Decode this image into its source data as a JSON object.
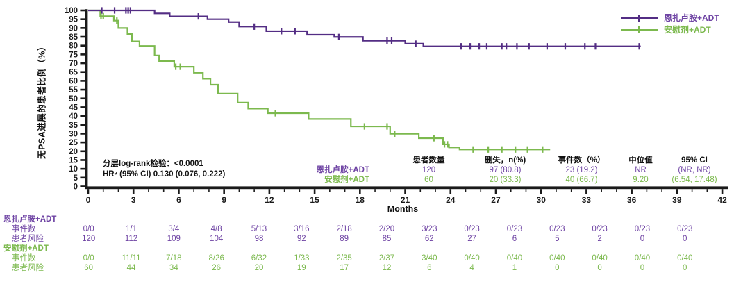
{
  "colors": {
    "axis": "#1a1a1a",
    "enza_line": "#532d84",
    "enza_text": "#6f44a4",
    "placebo_line": "#7cb94e",
    "placebo_text": "#7cb94e"
  },
  "legend": [
    {
      "label": "恩扎卢胺+ADT"
    },
    {
      "label": "安慰剂+ADT"
    }
  ],
  "stats": {
    "line1": "分层log-rank检验：<0.0001",
    "line2": "HRᵃ (95% CI) 0.130 (0.076, 0.222)"
  },
  "summary_table": {
    "row_labels": [
      "恩扎卢胺+ADT",
      "安慰剂+ADT"
    ],
    "headers": [
      "患者数量",
      "删失，n(%)",
      "事件数（%）",
      "中位值",
      "95% CI"
    ],
    "rows": [
      [
        "120",
        "97 (80.8)",
        "23 (19.2)",
        "NR",
        "(NR, NR)"
      ],
      [
        "60",
        "20 (33.3)",
        "40 (66.7)",
        "9.20",
        "(6.54, 17.48)"
      ]
    ]
  },
  "risk_table": {
    "groups": [
      {
        "name": "恩扎卢胺+ADT",
        "color_key": "enza_text",
        "rows": [
          {
            "label": "事件数",
            "values": [
              "0/0",
              "1/1",
              "3/4",
              "4/8",
              "5/13",
              "3/16",
              "2/18",
              "2/20",
              "3/23",
              "0/23",
              "0/23",
              "0/23",
              "0/23",
              "0/23",
              "0/23"
            ]
          },
          {
            "label": "患者风险",
            "values": [
              "120",
              "112",
              "109",
              "104",
              "98",
              "92",
              "89",
              "85",
              "62",
              "27",
              "6",
              "5",
              "2",
              "0",
              "0"
            ]
          }
        ]
      },
      {
        "name": "安慰剂+ADT",
        "color_key": "placebo_text",
        "rows": [
          {
            "label": "事件数",
            "values": [
              "0/0",
              "11/11",
              "7/18",
              "8/26",
              "6/32",
              "1/33",
              "2/35",
              "2/37",
              "3/40",
              "0/40",
              "0/40",
              "0/40",
              "0/40",
              "0/40",
              "0/40"
            ]
          },
          {
            "label": "患者风险",
            "values": [
              "60",
              "44",
              "34",
              "26",
              "20",
              "19",
              "17",
              "12",
              "6",
              "4",
              "1",
              "0",
              "0",
              "0",
              "0"
            ]
          }
        ]
      }
    ]
  },
  "chart_data": {
    "type": "line",
    "subtype": "kaplan-meier-step",
    "title": "",
    "xlabel": "Months",
    "ylabel": "无PSA进展的患者比例（%）",
    "xlim": [
      0,
      43
    ],
    "ylim": [
      0,
      100
    ],
    "x_ticks": [
      0,
      3,
      6,
      9,
      12,
      15,
      18,
      21,
      24,
      27,
      30,
      33,
      36,
      39,
      42
    ],
    "x_minor_tick_every": 1,
    "y_ticks": [
      100,
      95,
      90,
      85,
      80,
      75,
      70,
      65,
      60,
      55,
      50,
      45,
      40,
      35,
      30,
      25,
      20,
      15,
      10,
      5,
      0
    ],
    "grid": false,
    "legend_position": "top-right",
    "series": [
      {
        "name": "安慰剂+ADT",
        "color_key": "placebo_line",
        "end_month": 30.6,
        "steps": [
          [
            0,
            100
          ],
          [
            0.8,
            96.7
          ],
          [
            1.7,
            94.2
          ],
          [
            2.0,
            90.0
          ],
          [
            2.6,
            86.6
          ],
          [
            2.9,
            82.4
          ],
          [
            3.4,
            79.8
          ],
          [
            4.4,
            74.4
          ],
          [
            4.7,
            71.2
          ],
          [
            5.7,
            68.0
          ],
          [
            7.0,
            64.6
          ],
          [
            7.6,
            61.2
          ],
          [
            8.1,
            57.8
          ],
          [
            8.6,
            52.7
          ],
          [
            9.9,
            47.6
          ],
          [
            10.6,
            44.2
          ],
          [
            11.9,
            41.6
          ],
          [
            14.6,
            38.3
          ],
          [
            17.4,
            34.1
          ],
          [
            20.0,
            29.9
          ],
          [
            21.9,
            27.4
          ],
          [
            23.5,
            23.9
          ],
          [
            23.9,
            22.2
          ],
          [
            24.6,
            21.0
          ]
        ],
        "censors": [
          [
            0.85,
            96.7
          ],
          [
            1.0,
            96.7
          ],
          [
            1.9,
            94.2
          ],
          [
            5.8,
            68.0
          ],
          [
            6.1,
            68.0
          ],
          [
            12.4,
            41.6
          ],
          [
            18.3,
            34.1
          ],
          [
            19.8,
            34.1
          ],
          [
            20.3,
            29.9
          ],
          [
            22.9,
            27.4
          ],
          [
            23.6,
            23.9
          ],
          [
            23.8,
            23.9
          ],
          [
            25.5,
            21.0
          ],
          [
            26.5,
            21.0
          ],
          [
            27.4,
            21.0
          ],
          [
            28.3,
            21.0
          ],
          [
            29.1,
            21.0
          ],
          [
            30.1,
            21.0
          ]
        ]
      },
      {
        "name": "恩扎卢胺+ADT",
        "color_key": "enza_line",
        "end_month": 36.6,
        "steps": [
          [
            0,
            100
          ],
          [
            4.4,
            98.3
          ],
          [
            5.4,
            96.6
          ],
          [
            7.9,
            95.0
          ],
          [
            9.3,
            93.4
          ],
          [
            10.0,
            90.8
          ],
          [
            11.8,
            88.2
          ],
          [
            14.5,
            86.2
          ],
          [
            16.3,
            84.9
          ],
          [
            18.2,
            82.8
          ],
          [
            21.0,
            81.1
          ],
          [
            22.2,
            79.6
          ]
        ],
        "censors": [
          [
            0.9,
            100
          ],
          [
            1.75,
            100
          ],
          [
            2.5,
            100
          ],
          [
            2.65,
            100
          ],
          [
            2.8,
            100
          ],
          [
            7.3,
            96.6
          ],
          [
            11.0,
            90.8
          ],
          [
            12.8,
            88.2
          ],
          [
            13.7,
            88.2
          ],
          [
            16.6,
            84.9
          ],
          [
            19.8,
            82.8
          ],
          [
            20.1,
            82.8
          ],
          [
            21.7,
            81.1
          ],
          [
            24.7,
            79.6
          ],
          [
            25.3,
            79.6
          ],
          [
            25.9,
            79.6
          ],
          [
            26.4,
            79.6
          ],
          [
            27.4,
            79.6
          ],
          [
            27.7,
            79.6
          ],
          [
            28.4,
            79.6
          ],
          [
            29.2,
            79.6
          ],
          [
            30.4,
            79.6
          ],
          [
            31.6,
            79.6
          ],
          [
            32.9,
            79.6
          ],
          [
            33.6,
            79.6
          ],
          [
            36.5,
            79.6
          ]
        ]
      }
    ]
  }
}
